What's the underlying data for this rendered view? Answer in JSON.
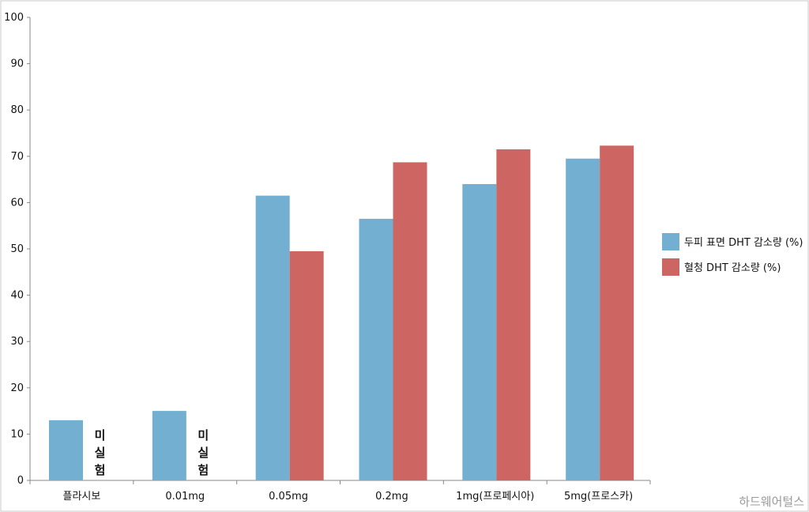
{
  "chart_data": {
    "type": "bar",
    "categories": [
      "플라시보",
      "0.01mg",
      "0.05mg",
      "0.2mg",
      "1mg(프로페시아)",
      "5mg(프로스카)"
    ],
    "series": [
      {
        "name": "두피 표면 DHT 감소량 (%)",
        "color": "#72afd1",
        "values": [
          13,
          15,
          61.5,
          56.5,
          64,
          69.5
        ]
      },
      {
        "name": "혈청 DHT 감소량 (%)",
        "color": "#cd6563",
        "values": [
          null,
          null,
          49.5,
          68.7,
          71.5,
          72.3
        ]
      }
    ],
    "ylim": [
      0,
      100
    ],
    "yticks": [
      0,
      10,
      20,
      30,
      40,
      50,
      60,
      70,
      80,
      90,
      100
    ],
    "grid": false,
    "legend_position": "right",
    "annotations": [
      {
        "category_index": 0,
        "text": [
          "미",
          "실",
          "험"
        ]
      },
      {
        "category_index": 1,
        "text": [
          "미",
          "실",
          "험"
        ]
      }
    ],
    "watermark": "하드웨어털스"
  }
}
